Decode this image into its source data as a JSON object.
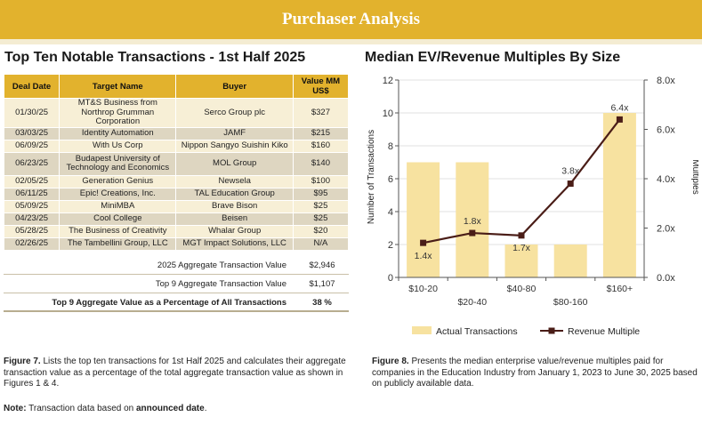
{
  "header": {
    "title": "Purchaser Analysis"
  },
  "left": {
    "title": "Top Ten Notable Transactions - 1st Half 2025",
    "columns": [
      "Deal Date",
      "Target Name",
      "Buyer",
      "Value MM US$"
    ],
    "rows": [
      [
        "01/30/25",
        "MT&S Business from Northrop Grumman Corporation",
        "Serco Group plc",
        "$327"
      ],
      [
        "03/03/25",
        "Identity Automation",
        "JAMF",
        "$215"
      ],
      [
        "06/09/25",
        "With Us Corp",
        "Nippon Sangyo Suishin Kiko",
        "$160"
      ],
      [
        "06/23/25",
        "Budapest University of Technology and Economics",
        "MOL Group",
        "$140"
      ],
      [
        "02/05/25",
        "Generation Genius",
        "Newsela",
        "$100"
      ],
      [
        "06/11/25",
        "Epic! Creations, Inc.",
        "TAL Education Group",
        "$95"
      ],
      [
        "05/09/25",
        "MiniMBA",
        "Brave Bison",
        "$25"
      ],
      [
        "04/23/25",
        "Cool College",
        "Beisen",
        "$25"
      ],
      [
        "05/28/25",
        "The Business of Creativity",
        "Whalar Group",
        "$20"
      ],
      [
        "02/26/25",
        "The Tambellini Group, LLC",
        "MGT Impact Solutions, LLC",
        "N/A"
      ]
    ],
    "summary": [
      {
        "label": "2025 Aggregate Transaction Value",
        "value": "$2,946"
      },
      {
        "label": "Top 9 Aggregate Transaction Value",
        "value": "$1,107"
      },
      {
        "label": "Top 9 Aggregate Value as a Percentage of All Transactions",
        "value": "38 %"
      }
    ],
    "caption_label": "Figure 7.",
    "caption_text": "Lists the top ten transactions for 1st Half 2025 and calculates their aggregate transaction value as a percentage of the total aggregate transaction value as shown in Figures 1 & 4.",
    "note_label": "Note:",
    "note_text_1": "Transaction data based on",
    "note_bold": "announced date",
    "note_text_2": "."
  },
  "right": {
    "title": "Median EV/Revenue Multiples By Size",
    "caption_label": "Figure 8.",
    "caption_text": "Presents the median enterprise value/revenue multiples paid for companies in the Education Industry from January 1, 2023 to June 30, 2025 based on publicly available data."
  },
  "chart_data": {
    "type": "bar",
    "categories": [
      "$10-20",
      "$20-40",
      "$40-80",
      "$80-160",
      "$160+"
    ],
    "series": [
      {
        "name": "Actual Transactions",
        "type": "bar",
        "axis": "left",
        "values": [
          7,
          7,
          2,
          2,
          10
        ]
      },
      {
        "name": "Revenue Multiple",
        "type": "line",
        "axis": "right",
        "values": [
          1.4,
          1.8,
          1.7,
          3.8,
          6.4
        ],
        "labels": [
          "1.4x",
          "1.8x",
          "1.7x",
          "3.8x",
          "6.4x"
        ]
      }
    ],
    "ylabel": "Number of Transactions",
    "y2label": "Multiples",
    "ylim": [
      0,
      12
    ],
    "y2lim": [
      0,
      8
    ],
    "yticks": [
      "0",
      "2",
      "4",
      "6",
      "8",
      "10",
      "12"
    ],
    "y2ticks": [
      "0.0x",
      "2.0x",
      "4.0x",
      "6.0x",
      "8.0x"
    ],
    "legend": "bottom",
    "colors": {
      "bar": "#f7e2a0",
      "line": "#4a1d17"
    }
  }
}
